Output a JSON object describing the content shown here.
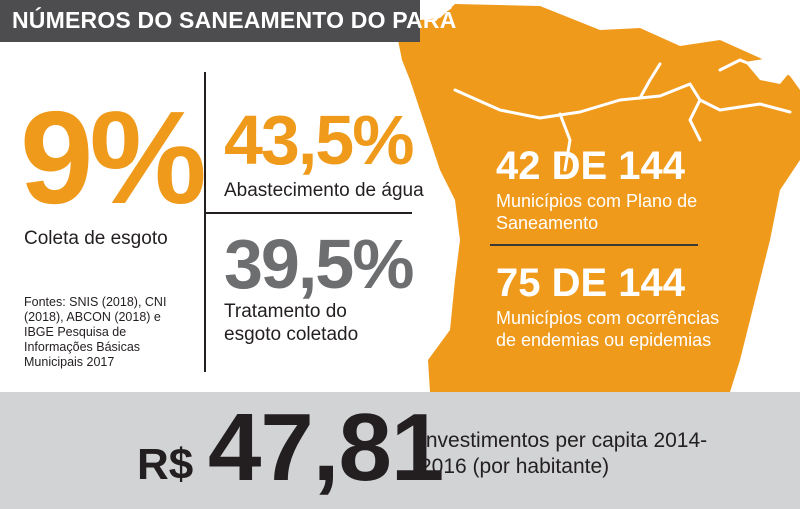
{
  "header": {
    "title": "NÚMEROS DO SANEAMENTO DO PARÁ"
  },
  "colors": {
    "accent": "#ef9a1b",
    "dark": "#4d4d4f",
    "gray_number": "#6d6e70",
    "band": "#d1d3d4"
  },
  "stats": {
    "sewage_collection": {
      "value": "9%",
      "label": "Coleta de esgoto"
    },
    "water_supply": {
      "value": "43,5%",
      "label": "Abastecimento de água"
    },
    "sewage_treatment": {
      "value": "39,5%",
      "label": "Tratamento do esgoto coletado"
    }
  },
  "sources": "Fontes: SNIS (2018), CNI (2018), ABCON (2018) e IBGE Pesquisa de Informações Básicas Municipais 2017",
  "map_panel": {
    "plan": {
      "value": "42 DE 144",
      "label": "Municípios com Plano de Saneamento"
    },
    "endemics": {
      "value": "75 DE 144",
      "label": "Municípios com ocorrências de endemias ou epidemias"
    }
  },
  "investment": {
    "currency": "R$",
    "value": "47,81",
    "label": "Investimentos per capita 2014-2016 (por habitante)"
  }
}
